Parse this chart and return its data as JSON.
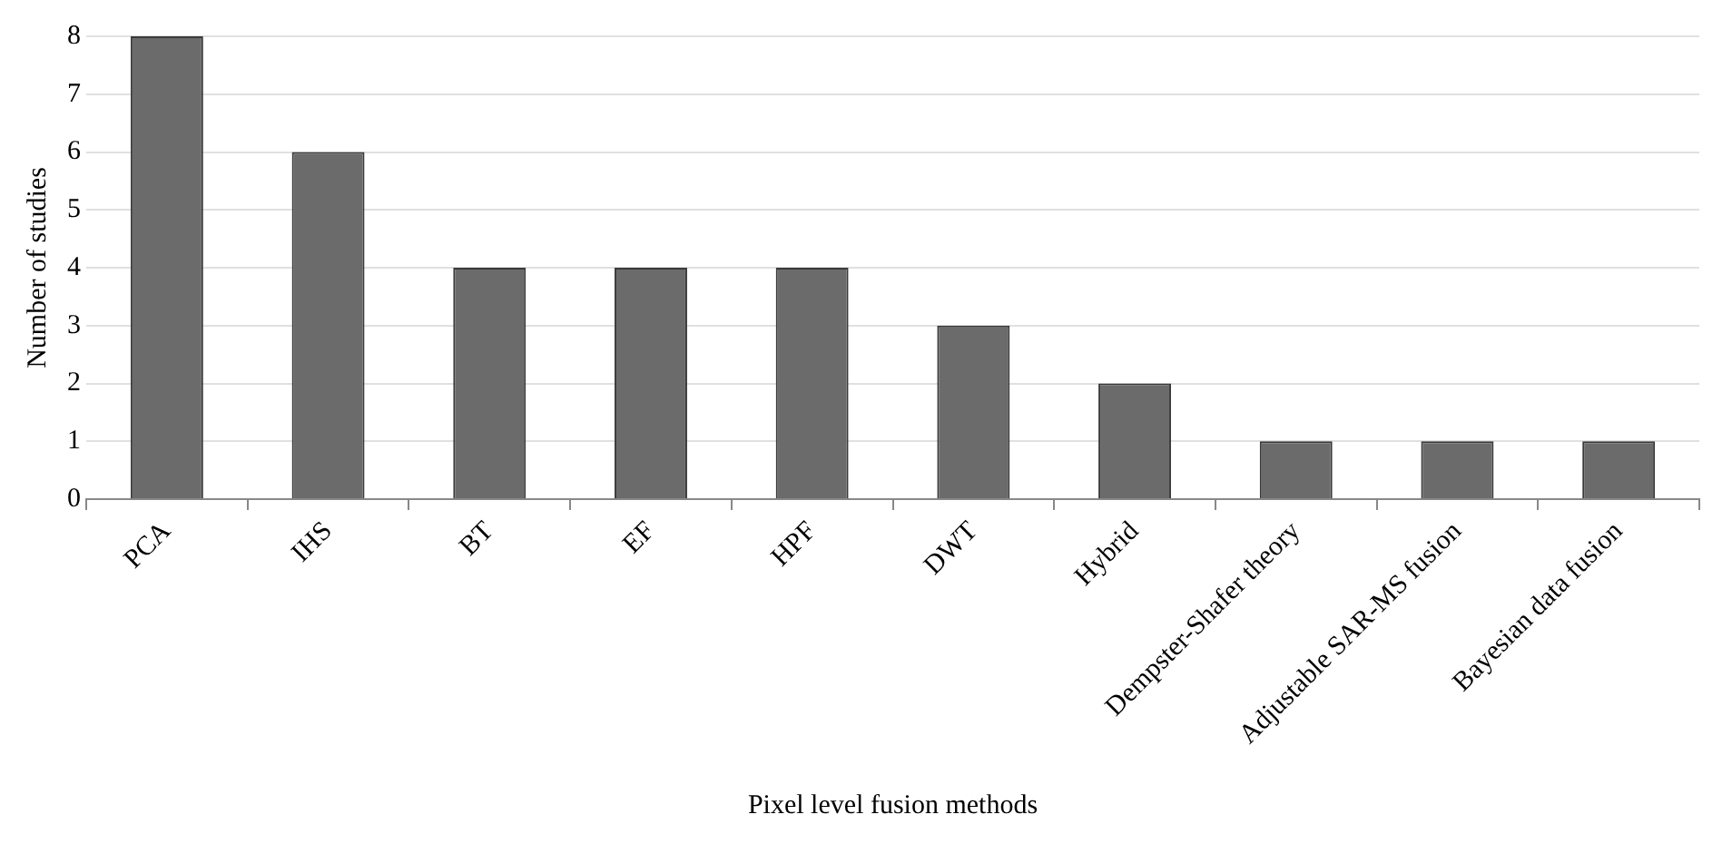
{
  "chart_data": {
    "type": "bar",
    "xlabel": "Pixel level fusion methods",
    "ylabel": "Number of studies",
    "categories": [
      "PCA",
      "IHS",
      "BT",
      "EF",
      "HPF",
      "DWT",
      "Hybrid",
      "Dempster-Shafer theory",
      "Adjustable SAR-MS fusion",
      "Bayesian data fusion"
    ],
    "values": [
      8,
      6,
      4,
      4,
      4,
      3,
      2,
      1,
      1,
      1
    ],
    "color": "#6b6b6b",
    "ylim": [
      0,
      8
    ],
    "yticks": [
      0,
      1,
      2,
      3,
      4,
      5,
      6,
      7,
      8
    ],
    "grid": "y"
  }
}
